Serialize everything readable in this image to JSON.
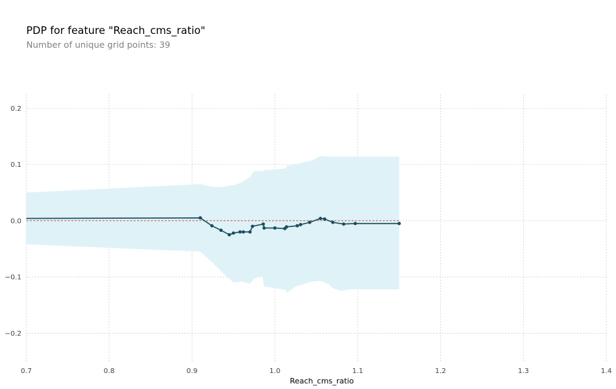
{
  "chart_data": {
    "type": "line",
    "title": "PDP for feature \"Reach_cms_ratio\"",
    "subtitle": "Number of unique grid points: 39",
    "xlabel": "Reach_cms_ratio",
    "ylabel": "",
    "xlim": [
      0.7,
      1.4
    ],
    "ylim": [
      -0.25,
      0.225
    ],
    "x_ticks": [
      0.7,
      0.8,
      0.9,
      1.0,
      1.1,
      1.2,
      1.3,
      1.4
    ],
    "y_ticks": [
      -0.2,
      -0.1,
      0.0,
      0.1,
      0.2
    ],
    "x_tick_labels": [
      "0.7",
      "0.8",
      "0.9",
      "1.0",
      "1.1",
      "1.2",
      "1.3",
      "1.4"
    ],
    "y_tick_labels": [
      "−0.2",
      "−0.1",
      "0.0",
      "0.1",
      "0.2"
    ],
    "grid": true,
    "baseline": 0.0,
    "series": [
      {
        "x": [
          0.7,
          0.91,
          0.924,
          0.935,
          0.945,
          0.95,
          0.958,
          0.962,
          0.97,
          0.973,
          0.986,
          0.987,
          1.0,
          1.012,
          1.014,
          1.027,
          1.031,
          1.042,
          1.055,
          1.06,
          1.07,
          1.083,
          1.097,
          1.15
        ],
        "y": [
          0.004,
          0.005,
          -0.009,
          -0.017,
          -0.025,
          -0.022,
          -0.02,
          -0.02,
          -0.02,
          -0.01,
          -0.006,
          -0.013,
          -0.013,
          -0.014,
          -0.011,
          -0.009,
          -0.007,
          -0.003,
          0.004,
          0.003,
          -0.003,
          -0.006,
          -0.005,
          -0.005
        ],
        "markers_x": [
          0.91,
          0.924,
          0.935,
          0.945,
          0.95,
          0.958,
          0.962,
          0.97,
          0.973,
          0.986,
          0.987,
          1.0,
          1.012,
          1.014,
          1.027,
          1.031,
          1.042,
          1.055,
          1.06,
          1.07,
          1.083,
          1.097,
          1.15
        ],
        "markers_y": [
          0.005,
          -0.009,
          -0.017,
          -0.025,
          -0.022,
          -0.02,
          -0.02,
          -0.02,
          -0.01,
          -0.006,
          -0.013,
          -0.013,
          -0.014,
          -0.011,
          -0.009,
          -0.007,
          -0.003,
          0.004,
          0.003,
          -0.003,
          -0.006,
          -0.005,
          -0.005
        ],
        "band": {
          "x": [
            0.7,
            0.91,
            0.925,
            0.935,
            0.95,
            0.96,
            0.97,
            0.975,
            0.985,
            0.987,
            1.0,
            1.013,
            1.015,
            1.025,
            1.035,
            1.045,
            1.055,
            1.065,
            1.07,
            1.08,
            1.09,
            1.1,
            1.15
          ],
          "upper": [
            0.05,
            0.065,
            0.06,
            0.06,
            0.063,
            0.068,
            0.078,
            0.088,
            0.088,
            0.09,
            0.091,
            0.093,
            0.098,
            0.1,
            0.104,
            0.107,
            0.115,
            0.114,
            0.114,
            0.114,
            0.114,
            0.114,
            0.114
          ],
          "lower": [
            -0.042,
            -0.055,
            -0.075,
            -0.09,
            -0.11,
            -0.108,
            -0.112,
            -0.103,
            -0.098,
            -0.117,
            -0.12,
            -0.123,
            -0.128,
            -0.117,
            -0.113,
            -0.108,
            -0.107,
            -0.113,
            -0.12,
            -0.125,
            -0.122,
            -0.122,
            -0.122
          ]
        },
        "colors": {
          "line": "#1a4e5e",
          "band": "#dff2f7",
          "baseline": "#c0463c",
          "grid": "#cccccc"
        }
      }
    ]
  }
}
